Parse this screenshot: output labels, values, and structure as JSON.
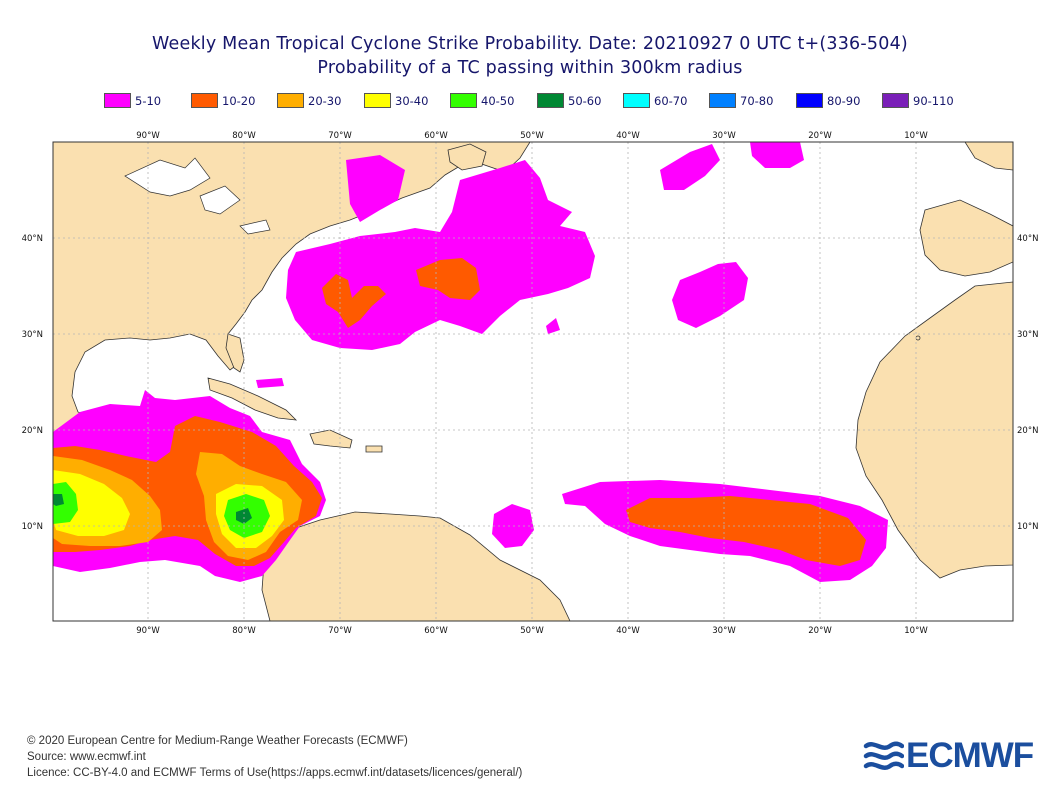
{
  "header": {
    "title_line1": "Weekly Mean Tropical Cyclone Strike Probability. Date: 20210927  0 UTC    t+(336-504)",
    "title_line2": "Probability of a TC passing within  300km radius"
  },
  "legend": [
    {
      "label": "5-10",
      "color": "#ff00ff"
    },
    {
      "label": "10-20",
      "color": "#ff5a00"
    },
    {
      "label": "20-30",
      "color": "#ffae00"
    },
    {
      "label": "30-40",
      "color": "#ffff00"
    },
    {
      "label": "40-50",
      "color": "#33ff00"
    },
    {
      "label": "50-60",
      "color": "#008833"
    },
    {
      "label": "60-70",
      "color": "#00ffff"
    },
    {
      "label": "70-80",
      "color": "#0080ff"
    },
    {
      "label": "80-90",
      "color": "#0000ff"
    },
    {
      "label": "90-110",
      "color": "#7a1fb8"
    }
  ],
  "axes": {
    "longitude_labels": [
      "90°W",
      "80°W",
      "70°W",
      "60°W",
      "50°W",
      "40°W",
      "30°W",
      "20°W",
      "10°W"
    ],
    "latitude_labels": [
      "40°N",
      "30°N",
      "20°N",
      "10°N"
    ]
  },
  "map": {
    "land_color": "#fae0b0",
    "ocean_color": "#ffffff"
  },
  "footer": {
    "copyright": "© 2020 European Centre for Medium-Range Weather Forecasts (ECMWF)",
    "source": "Source: www.ecmwf.int",
    "licence": "Licence: CC-BY-4.0 and ECMWF Terms of Use(https://apps.ecmwf.int/datasets/licences/general/)"
  },
  "logo": {
    "text": "ECMWF",
    "color": "#1b4e9e"
  }
}
